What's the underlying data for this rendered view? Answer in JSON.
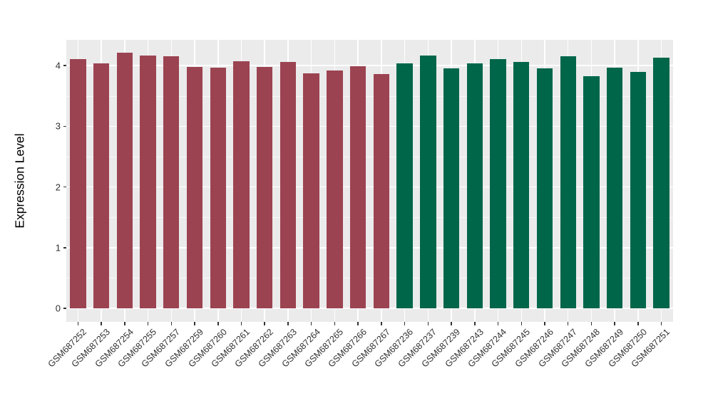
{
  "chart_data": {
    "type": "bar",
    "title": "",
    "ylabel": "Expression Level",
    "xlabel": "",
    "yticks": [
      0,
      1,
      2,
      3,
      4
    ],
    "ylim": [
      -0.22,
      4.42
    ],
    "grid": "major+minor horizontal, vertical at category centers",
    "legend": "none",
    "panel_bg": "#EBEBEB",
    "grid_major_color": "#FFFFFF",
    "grid_minor_color": "#F7F7F7",
    "axis_text_color": "#303030",
    "group_colors": {
      "group1": "#9C4351",
      "group2": "#00664A"
    },
    "bars": [
      {
        "label": "GSM687252",
        "value": 4.1,
        "group": "group1"
      },
      {
        "label": "GSM687253",
        "value": 4.03,
        "group": "group1"
      },
      {
        "label": "GSM687254",
        "value": 4.21,
        "group": "group1"
      },
      {
        "label": "GSM687255",
        "value": 4.16,
        "group": "group1"
      },
      {
        "label": "GSM687257",
        "value": 4.15,
        "group": "group1"
      },
      {
        "label": "GSM687259",
        "value": 3.98,
        "group": "group1"
      },
      {
        "label": "GSM687260",
        "value": 3.97,
        "group": "group1"
      },
      {
        "label": "GSM687261",
        "value": 4.07,
        "group": "group1"
      },
      {
        "label": "GSM687262",
        "value": 3.98,
        "group": "group1"
      },
      {
        "label": "GSM687263",
        "value": 4.06,
        "group": "group1"
      },
      {
        "label": "GSM687264",
        "value": 3.87,
        "group": "group1"
      },
      {
        "label": "GSM687265",
        "value": 3.92,
        "group": "group1"
      },
      {
        "label": "GSM687266",
        "value": 3.99,
        "group": "group1"
      },
      {
        "label": "GSM687267",
        "value": 3.86,
        "group": "group1"
      },
      {
        "label": "GSM687236",
        "value": 4.04,
        "group": "group2"
      },
      {
        "label": "GSM687237",
        "value": 4.17,
        "group": "group2"
      },
      {
        "label": "GSM687239",
        "value": 3.95,
        "group": "group2"
      },
      {
        "label": "GSM687243",
        "value": 4.03,
        "group": "group2"
      },
      {
        "label": "GSM687244",
        "value": 4.1,
        "group": "group2"
      },
      {
        "label": "GSM687245",
        "value": 4.06,
        "group": "group2"
      },
      {
        "label": "GSM687246",
        "value": 3.95,
        "group": "group2"
      },
      {
        "label": "GSM687247",
        "value": 4.15,
        "group": "group2"
      },
      {
        "label": "GSM687248",
        "value": 3.82,
        "group": "group2"
      },
      {
        "label": "GSM687249",
        "value": 3.96,
        "group": "group2"
      },
      {
        "label": "GSM687250",
        "value": 3.9,
        "group": "group2"
      },
      {
        "label": "GSM687251",
        "value": 4.13,
        "group": "group2"
      }
    ]
  }
}
